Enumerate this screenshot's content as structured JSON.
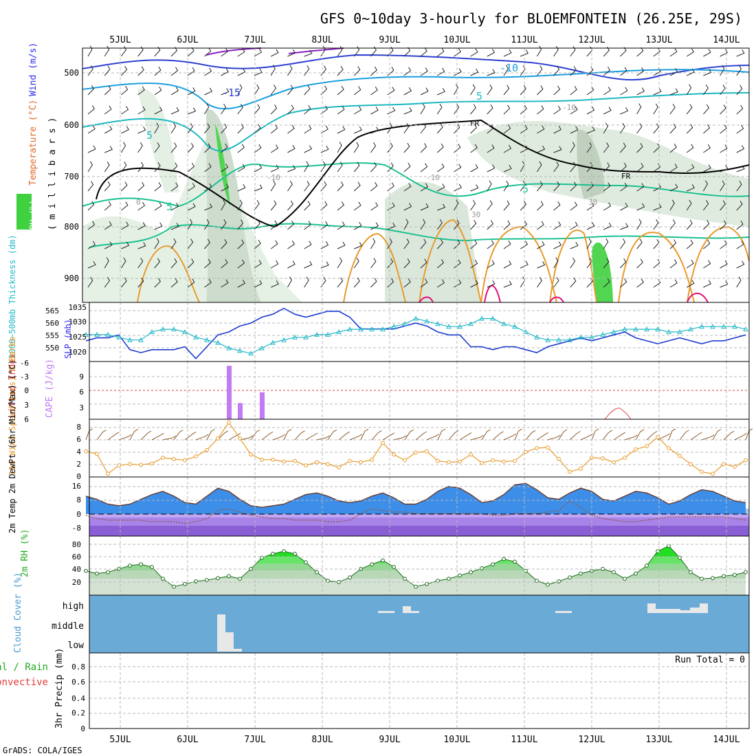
{
  "title": "GFS 0~10day 3-hourly for BLOEMFONTEIN (26.25E, 29S)",
  "footer": "GrADS: COLA/IGES",
  "colors": {
    "rh_green": "#3fd13f",
    "temp_line": "#2d2df0",
    "thickness_line": "#22b8c8",
    "cape_bar": "#c07cf5",
    "wind_speed": "#e89a2a",
    "cloud_blue": "#6aaad6",
    "rh_fill": "#33dd33"
  },
  "chart_data": [
    {
      "type": "line",
      "name": "upper-air",
      "days": [
        "5JUL",
        "6JUL",
        "7JUL",
        "8JUL",
        "9JUL",
        "10JUL",
        "11JUL",
        "12JUL",
        "13JUL",
        "14JUL"
      ],
      "ylabel_rh": "RH (%)",
      "ylabel_temp": "Temperature (°C)",
      "ylabel_wind": "Wind (m/s)",
      "ylabel_mb": "( m i l l i b a r s )",
      "yticks": [
        "500",
        "600",
        "700",
        "800",
        "900"
      ],
      "contour_labels": [
        "-15",
        "-10",
        "5",
        "5",
        "5",
        "5",
        "FR",
        "FR",
        "0",
        "-10",
        "-10",
        "-10",
        "30",
        "30"
      ]
    },
    {
      "type": "line",
      "name": "slp-thickness",
      "ylabel_left": "1000~500mb Thickness (dm)",
      "ylabel_right": "SLP (mb)",
      "yticks_left": [
        "565",
        "560",
        "555",
        "550"
      ],
      "yticks_right": [
        "1035",
        "1030",
        "1025",
        "1020"
      ],
      "ylim_slp": [
        1017,
        1037
      ],
      "slp": [
        1024,
        1025,
        1025,
        1026,
        1021,
        1020,
        1021,
        1021,
        1021,
        1022,
        1018,
        1022,
        1026,
        1027,
        1029,
        1030,
        1032,
        1033,
        1035,
        1033,
        1032,
        1033,
        1034,
        1034,
        1032,
        1028,
        1028,
        1028,
        1028,
        1029,
        1030,
        1029,
        1027,
        1026,
        1026,
        1022,
        1022,
        1021,
        1022,
        1022,
        1021,
        1020,
        1022,
        1023,
        1024,
        1025,
        1024,
        1025,
        1026,
        1027,
        1025,
        1024,
        1023,
        1024,
        1025,
        1024,
        1023,
        1024,
        1024,
        1025,
        1026
      ],
      "thickness": [
        555,
        555,
        555,
        554,
        553,
        553,
        556,
        557,
        557,
        556,
        554,
        553,
        552,
        550,
        549,
        548,
        550,
        552,
        553,
        554,
        554,
        555,
        555,
        556,
        557,
        557,
        557,
        557,
        558,
        559,
        561,
        560,
        559,
        558,
        558,
        559,
        561,
        561,
        559,
        558,
        556,
        554,
        553,
        553,
        553,
        554,
        554,
        555,
        556,
        557,
        557,
        557,
        557,
        556,
        556,
        557,
        558,
        558,
        558,
        558,
        557
      ]
    },
    {
      "type": "bar",
      "name": "cape-lifted-index",
      "ylabel_left": "Lifted Index",
      "ylabel_right": "CAPE (J/kg)",
      "yticks_left": [
        "-6",
        "-3",
        "0",
        "3",
        "6"
      ],
      "yticks_right": [
        "9",
        "6",
        "3"
      ],
      "ylim_cape": [
        0,
        13.5
      ],
      "cape": [
        0,
        0,
        0,
        0,
        0,
        0,
        0,
        0,
        0,
        0,
        0,
        0,
        0,
        12.5,
        3.8,
        0,
        6.3,
        0,
        0,
        0,
        0,
        0,
        0,
        0,
        0,
        0,
        0,
        0,
        0,
        0,
        0,
        0,
        0,
        0,
        0,
        0,
        0,
        0,
        0,
        0,
        0,
        0,
        0,
        0,
        0,
        0,
        0,
        0,
        0,
        0,
        0,
        0,
        0,
        0,
        0,
        0,
        0,
        0,
        0,
        0,
        0
      ],
      "lifted_index_peak": 3
    },
    {
      "type": "line",
      "name": "10m-wind",
      "ylabel": "10m Wind Speed (m/s) & Barbs",
      "yticks": [
        "8",
        "6",
        "4",
        "2",
        "0"
      ],
      "ylim": [
        0,
        9
      ],
      "values": [
        4,
        3.6,
        0.5,
        1.8,
        2,
        1.9,
        2.1,
        3,
        2.8,
        2.6,
        3.2,
        4.2,
        6,
        8.5,
        6,
        3.5,
        2.7,
        2.7,
        2.4,
        2.5,
        1.8,
        2.3,
        2,
        1.5,
        2.5,
        2.3,
        2.7,
        5.3,
        3.5,
        2.6,
        3.8,
        4,
        2.5,
        2.3,
        2.4,
        3.5,
        2.2,
        2.6,
        2.4,
        2.5,
        3.9,
        4.5,
        4.6,
        2.8,
        0.8,
        1.3,
        3,
        2.9,
        2.3,
        3,
        4.3,
        4.8,
        6.2,
        4.5,
        3.3,
        2,
        0.8,
        0.5,
        2,
        1.6,
        2.6
      ]
    },
    {
      "type": "area",
      "name": "2m-temp",
      "ylabel": "2m Temp 2m DewPt (6hr Min/Max) (°C)",
      "yticks": [
        "16",
        "8",
        "0",
        "-8"
      ],
      "ylim": [
        -16,
        21
      ],
      "temp": [
        9,
        7,
        4,
        3,
        4,
        7,
        10,
        12,
        9,
        5,
        4,
        9,
        14,
        12,
        7,
        3,
        2,
        3,
        4,
        7,
        10,
        11,
        9,
        6,
        5,
        6,
        9,
        11,
        8,
        4,
        4,
        7,
        12,
        15,
        14,
        10,
        5,
        6,
        10,
        16,
        17,
        13,
        8,
        7,
        11,
        14,
        12,
        7,
        6,
        9,
        12,
        11,
        8,
        4,
        6,
        10,
        13,
        12,
        9,
        6,
        5
      ],
      "dewpt": [
        -3,
        -5,
        -6,
        -6,
        -6,
        -6,
        -7,
        -7,
        -7,
        -8,
        -7,
        -5,
        0,
        1,
        -1,
        -3,
        -4,
        -5,
        -5,
        -6,
        -6,
        -6,
        -7,
        -7,
        -6,
        -2,
        1,
        0,
        -1,
        -1,
        -2,
        -2,
        -2,
        -2,
        -2,
        -2,
        -2,
        -3,
        -3,
        -2,
        -2,
        -2,
        -1,
        0,
        6,
        2,
        -3,
        -5,
        -6,
        -7,
        -7,
        -6,
        -5,
        -4,
        -4,
        -4,
        -4,
        -4,
        -4,
        -5,
        -6
      ]
    },
    {
      "type": "area",
      "name": "2m-rh",
      "ylabel": "2m RH (%)",
      "yticks": [
        "80",
        "60",
        "40",
        "20"
      ],
      "ylim": [
        5,
        95
      ],
      "values": [
        42,
        38,
        40,
        45,
        50,
        52,
        48,
        30,
        18,
        22,
        26,
        28,
        31,
        34,
        30,
        45,
        62,
        68,
        72,
        68,
        55,
        40,
        27,
        25,
        32,
        45,
        52,
        58,
        48,
        30,
        18,
        22,
        27,
        30,
        35,
        40,
        46,
        52,
        60,
        56,
        42,
        27,
        21,
        26,
        32,
        38,
        42,
        45,
        40,
        30,
        38,
        50,
        72,
        80,
        62,
        40,
        30,
        31,
        34,
        36,
        40
      ]
    },
    {
      "type": "bar",
      "name": "cloud-cover",
      "ylabel": "Cloud Cover (%)",
      "levels": [
        "high",
        "middle",
        "low"
      ]
    },
    {
      "type": "bar",
      "name": "precip",
      "ylabel_left": "Total / Rain",
      "ylabel_left2": "Convective",
      "ylabel_right": "3hr Precip (mm)",
      "yticks": [
        "0.8",
        "0.6",
        "0.4",
        "0.2",
        "0"
      ],
      "ylim": [
        0,
        1
      ],
      "run_total": "Run Total = 0"
    }
  ]
}
